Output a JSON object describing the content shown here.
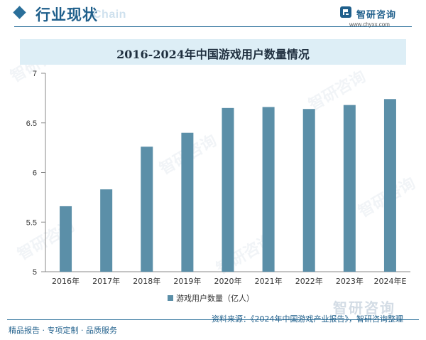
{
  "header": {
    "title": "行业现状",
    "ghost_text": "Chain"
  },
  "logo": {
    "name": "智研咨询",
    "url": "www.chyxx.com"
  },
  "watermark": {
    "text": "智研咨询"
  },
  "colors": {
    "bar": "#5b8fa8",
    "accent": "#1f5f8b",
    "title_band": "#ddeef6"
  },
  "chart_data": {
    "type": "bar",
    "title": "2016-2024年中国游戏用户数量情况",
    "categories": [
      "2016年",
      "2017年",
      "2018年",
      "2019年",
      "2020年",
      "2021年",
      "2022年",
      "2023年",
      "2024年E"
    ],
    "series": [
      {
        "name": "游戏用户数量（亿人）",
        "values": [
          5.66,
          5.83,
          6.26,
          6.4,
          6.65,
          6.66,
          6.64,
          6.68,
          6.74
        ]
      }
    ],
    "yticks": [
      "7",
      "6.5",
      "6",
      "5.5",
      "5"
    ],
    "ylim": [
      5,
      7
    ],
    "xlabel": "",
    "ylabel": "",
    "legend_position": "bottom-center"
  },
  "footer": {
    "left": "精品报告 · 专项定制 · 品质服务",
    "source": "资料来源：《2024年中国游戏产业报告》，智研咨询整理"
  }
}
